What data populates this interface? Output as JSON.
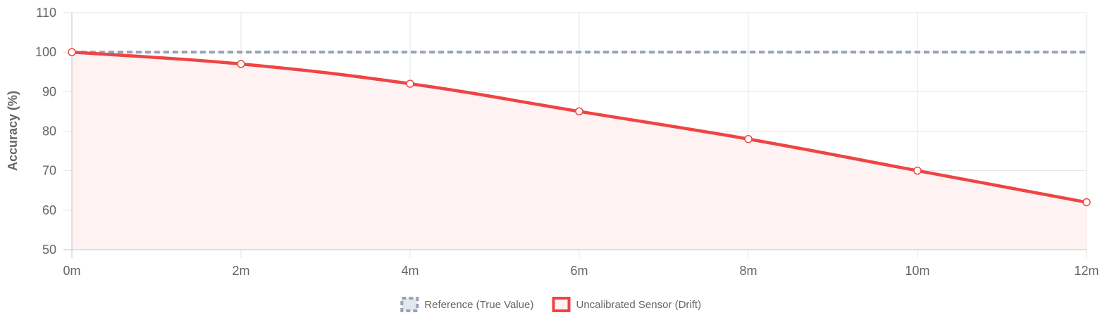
{
  "chart_data": {
    "type": "line",
    "title": "",
    "xlabel": "",
    "ylabel": "Accuracy (%)",
    "categories": [
      "0m",
      "2m",
      "4m",
      "6m",
      "8m",
      "10m",
      "12m"
    ],
    "ylim": [
      50,
      110
    ],
    "yticks": [
      "50",
      "60",
      "70",
      "80",
      "90",
      "100",
      "110"
    ],
    "grid": true,
    "legend_position": "bottom",
    "series": [
      {
        "name": "Reference (True Value)",
        "values": [
          100,
          100,
          100,
          100,
          100,
          100,
          100
        ],
        "color": "#94a3b8",
        "style": "dashed",
        "fill": false
      },
      {
        "name": "Uncalibrated Sensor (Drift)",
        "values": [
          100,
          97,
          92,
          85,
          78,
          70,
          62
        ],
        "color": "#ef4444",
        "style": "solid",
        "fill": true,
        "fill_color": "#fef2f2"
      }
    ]
  }
}
